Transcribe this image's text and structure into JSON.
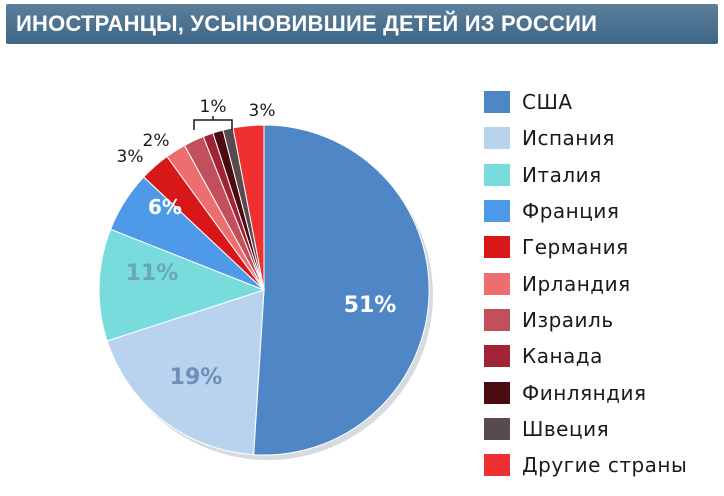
{
  "chart_data": {
    "type": "pie",
    "title": "ИНОСТРАНЦЫ, УСЫНОВИВШИЕ ДЕТЕЙ ИЗ РОССИИ",
    "slices": [
      {
        "name": "США",
        "value": 51,
        "label": "51%",
        "color": "#4f86c6"
      },
      {
        "name": "Испания",
        "value": 19,
        "label": "19%",
        "color": "#b9d3ee"
      },
      {
        "name": "Италия",
        "value": 11,
        "label": "11%",
        "color": "#79dcdc"
      },
      {
        "name": "Франция",
        "value": 6,
        "label": "6%",
        "color": "#4e9ae8"
      },
      {
        "name": "Германия",
        "value": 3,
        "label": "3%",
        "color": "#d81818"
      },
      {
        "name": "Ирландия",
        "value": 2,
        "label": "2%",
        "color": "#ec6e6e"
      },
      {
        "name": "Израиль",
        "value": 2,
        "label": "",
        "color": "#c2505c"
      },
      {
        "name": "Канада",
        "value": 1,
        "label": "",
        "color": "#a32336"
      },
      {
        "name": "Финляндия",
        "value": 1,
        "label": "",
        "color": "#4a0c10"
      },
      {
        "name": "Швеция",
        "value": 1,
        "label": "",
        "color": "#5a4a4e"
      },
      {
        "name": "Другие страны",
        "value": 3,
        "label": "3%",
        "color": "#ee3030"
      }
    ],
    "bracket_label": "1%",
    "legend_position": "right"
  }
}
